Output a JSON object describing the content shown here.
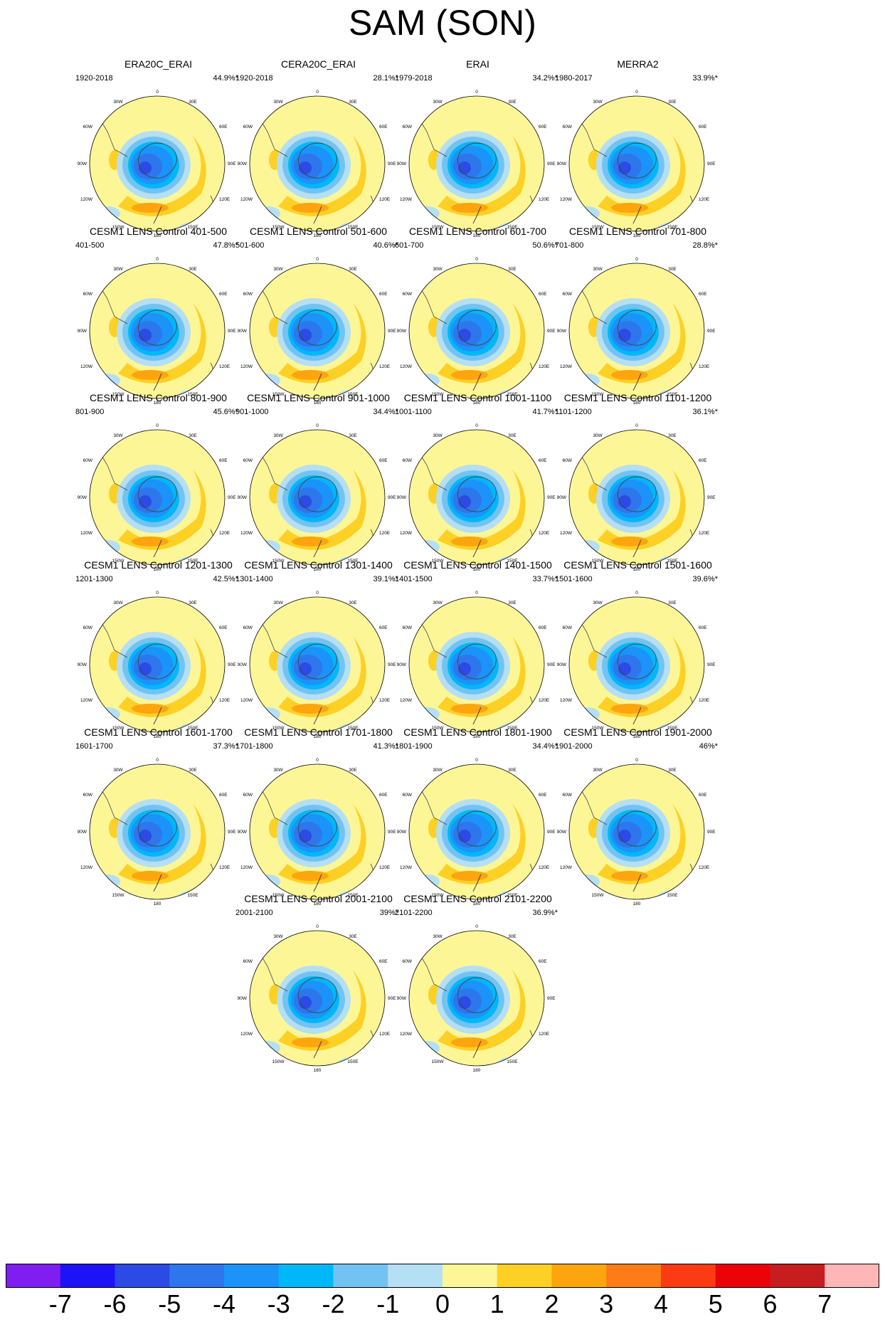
{
  "title": "SAM (SON)",
  "colors": {
    "yellow": "#fdf697",
    "orange1": "#fdd026",
    "orange2": "#fda50e",
    "blue_light": "#b5dff3",
    "blue1": "#73c3f2",
    "blue2": "#00b8f9",
    "blue3": "#1b93f8",
    "blue4": "#2e76ec",
    "blue5": "#2c4ae4",
    "land_line": "#444444"
  },
  "colorbar": {
    "colors": [
      "#7e1ef0",
      "#1e12f6",
      "#2c4ae4",
      "#2e76ec",
      "#1b93f8",
      "#00b8f9",
      "#73c3f2",
      "#b5dff3",
      "#fdf697",
      "#fdd026",
      "#fda50e",
      "#fd7c15",
      "#fd3b12",
      "#ea0307",
      "#c61e1e",
      "#ffb6b6"
    ],
    "labels": [
      "-7",
      "-6",
      "-5",
      "-4",
      "-3",
      "-2",
      "-1",
      "0",
      "1",
      "2",
      "3",
      "4",
      "5",
      "6",
      "7"
    ]
  },
  "lon_labels": {
    "top": "0",
    "tr": "30E",
    "rt": "60E",
    "right": "90E",
    "rb": "120E",
    "br": "150E",
    "bottom": "180",
    "bl": "150W",
    "lb": "120W",
    "left": "90W",
    "lt": "60W",
    "tl": "30W"
  },
  "panels": [
    {
      "title": "ERA20C_ERAI",
      "period": "1920-2018",
      "pct": "44.9%*"
    },
    {
      "title": "CERA20C_ERAI",
      "period": "1920-2018",
      "pct": "28.1%*"
    },
    {
      "title": "ERAI",
      "period": "1979-2018",
      "pct": "34.2%*"
    },
    {
      "title": "MERRA2",
      "period": "1980-2017",
      "pct": "33.9%*"
    },
    {
      "title": "CESM1 LENS Control 401-500",
      "period": "401-500",
      "pct": "47.8%*"
    },
    {
      "title": "CESM1 LENS Control 501-600",
      "period": "501-600",
      "pct": "40.6%*"
    },
    {
      "title": "CESM1 LENS Control 601-700",
      "period": "601-700",
      "pct": "50.6%*"
    },
    {
      "title": "CESM1 LENS Control 701-800",
      "period": "701-800",
      "pct": "28.8%*"
    },
    {
      "title": "CESM1 LENS Control 801-900",
      "period": "801-900",
      "pct": "45.6%*"
    },
    {
      "title": "CESM1 LENS Control 901-1000",
      "period": "901-1000",
      "pct": "34.4%*"
    },
    {
      "title": "CESM1 LENS Control 1001-1100",
      "period": "1001-1100",
      "pct": "41.7%*"
    },
    {
      "title": "CESM1 LENS Control 1101-1200",
      "period": "1101-1200",
      "pct": "36.1%*"
    },
    {
      "title": "CESM1 LENS Control 1201-1300",
      "period": "1201-1300",
      "pct": "42.5%*"
    },
    {
      "title": "CESM1 LENS Control 1301-1400",
      "period": "1301-1400",
      "pct": "39.1%*"
    },
    {
      "title": "CESM1 LENS Control 1401-1500",
      "period": "1401-1500",
      "pct": "33.7%*"
    },
    {
      "title": "CESM1 LENS Control 1501-1600",
      "period": "1501-1600",
      "pct": "39.6%*"
    },
    {
      "title": "CESM1 LENS Control 1601-1700",
      "period": "1601-1700",
      "pct": "37.3%*"
    },
    {
      "title": "CESM1 LENS Control 1701-1800",
      "period": "1701-1800",
      "pct": "41.3%*"
    },
    {
      "title": "CESM1 LENS Control 1801-1900",
      "period": "1801-1900",
      "pct": "34.4%*"
    },
    {
      "title": "CESM1 LENS Control 1901-2000",
      "period": "1901-2000",
      "pct": "46%*"
    },
    {
      "title": "CESM1 LENS Control 2001-2100",
      "period": "2001-2100",
      "pct": "39%*"
    },
    {
      "title": "CESM1 LENS Control 2101-2200",
      "period": "2101-2200",
      "pct": "36.9%*"
    }
  ]
}
